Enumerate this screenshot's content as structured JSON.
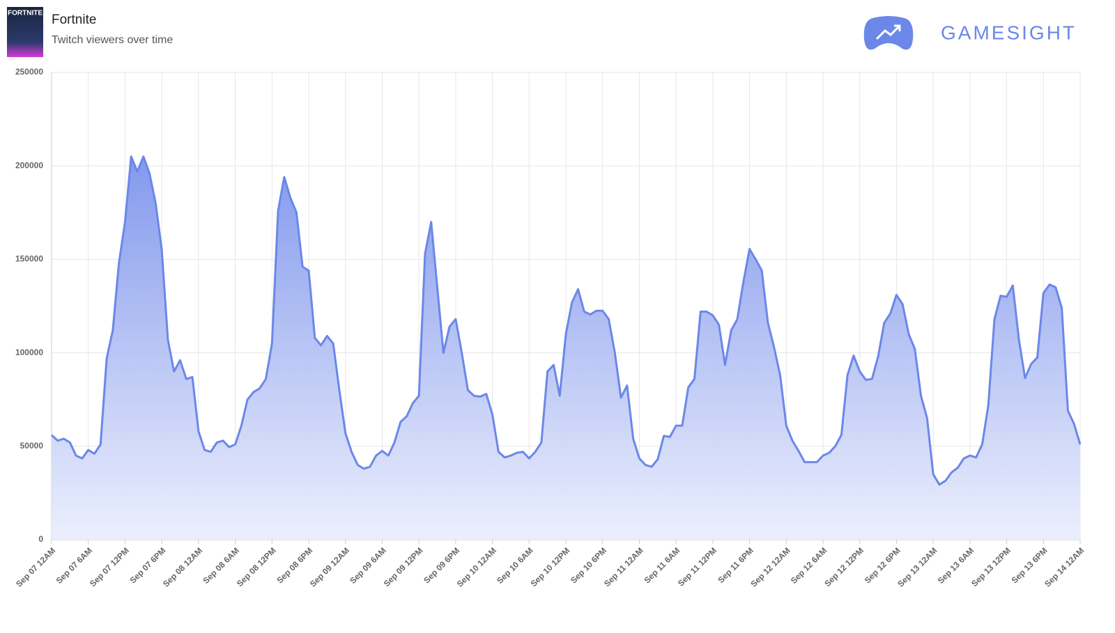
{
  "header": {
    "cover_label": "FORTNITE",
    "brand": "GAMESIGHT"
  },
  "chart_data": {
    "type": "area",
    "title": "Fortnite",
    "subtitle": "Twitch viewers over time",
    "color": "#6b87e8",
    "grid": true,
    "ylim": [
      0,
      250000
    ],
    "yticks": [
      0,
      50000,
      100000,
      150000,
      200000,
      250000
    ],
    "categories": [
      "Sep 07 12AM",
      null,
      null,
      null,
      null,
      null,
      "Sep 07 6AM",
      null,
      null,
      null,
      null,
      null,
      "Sep 07 12PM",
      null,
      null,
      null,
      null,
      null,
      "Sep 07 6PM",
      null,
      null,
      null,
      null,
      null,
      "Sep 08 12AM",
      null,
      null,
      null,
      null,
      null,
      "Sep 08 6AM",
      null,
      null,
      null,
      null,
      null,
      "Sep 08 12PM",
      null,
      null,
      null,
      null,
      null,
      "Sep 08 6PM",
      null,
      null,
      null,
      null,
      null,
      "Sep 09 12AM",
      null,
      null,
      null,
      null,
      null,
      "Sep 09 6AM",
      null,
      null,
      null,
      null,
      null,
      "Sep 09 12PM",
      null,
      null,
      null,
      null,
      null,
      "Sep 09 6PM",
      null,
      null,
      null,
      null,
      null,
      "Sep 10 12AM",
      null,
      null,
      null,
      null,
      null,
      "Sep 10 6AM",
      null,
      null,
      null,
      null,
      null,
      "Sep 10 12PM",
      null,
      null,
      null,
      null,
      null,
      "Sep 10 6PM",
      null,
      null,
      null,
      null,
      null,
      "Sep 11 12AM",
      null,
      null,
      null,
      null,
      null,
      "Sep 11 6AM",
      null,
      null,
      null,
      null,
      null,
      "Sep 11 12PM",
      null,
      null,
      null,
      null,
      null,
      "Sep 11 6PM",
      null,
      null,
      null,
      null,
      null,
      "Sep 12 12AM",
      null,
      null,
      null,
      null,
      null,
      "Sep 12 6AM",
      null,
      null,
      null,
      null,
      null,
      "Sep 12 12PM",
      null,
      null,
      null,
      null,
      null,
      "Sep 12 6PM",
      null,
      null,
      null,
      null,
      null,
      "Sep 13 12AM",
      null,
      null,
      null,
      null,
      null,
      "Sep 13 6AM",
      null,
      null,
      null,
      null,
      null,
      "Sep 13 12PM",
      null,
      null,
      null,
      null,
      null,
      "Sep 13 6PM",
      null,
      null,
      null,
      null,
      null,
      "Sep 14 12AM"
    ],
    "values": [
      56000,
      53000,
      54000,
      52000,
      45000,
      43500,
      48000,
      46000,
      51000,
      97000,
      112000,
      148000,
      170000,
      205000,
      197000,
      205000,
      196000,
      180000,
      155000,
      107000,
      90000,
      96000,
      86000,
      87000,
      58000,
      48000,
      47000,
      52000,
      53000,
      49500,
      51000,
      61000,
      75000,
      79000,
      81000,
      86000,
      105000,
      176000,
      194000,
      183000,
      175000,
      146000,
      144000,
      108000,
      104000,
      109000,
      105000,
      80000,
      57000,
      47000,
      40000,
      38000,
      39000,
      45000,
      47500,
      45000,
      52000,
      63000,
      66000,
      73000,
      77000,
      153000,
      170000,
      135000,
      100000,
      114000,
      118000,
      100000,
      80000,
      77000,
      76500,
      78000,
      67000,
      47000,
      44000,
      45000,
      46500,
      47000,
      43500,
      47000,
      52000,
      90000,
      93500,
      77000,
      110000,
      127000,
      134000,
      122000,
      120500,
      122500,
      122500,
      118000,
      100000,
      76000,
      82500,
      54000,
      43500,
      40000,
      39000,
      43000,
      55500,
      55000,
      61000,
      61000,
      81500,
      86000,
      122000,
      122000,
      120000,
      115000,
      93500,
      112000,
      118000,
      138000,
      155500,
      150000,
      144000,
      116000,
      103000,
      88000,
      61000,
      53000,
      47500,
      41500,
      41500,
      41500,
      45000,
      46500,
      50000,
      56000,
      88000,
      98500,
      90000,
      85500,
      86000,
      98000,
      116000,
      121000,
      131000,
      126000,
      110000,
      102000,
      77000,
      65000,
      35000,
      29500,
      31500,
      36000,
      38500,
      43500,
      45000,
      44000,
      51000,
      72000,
      118000,
      130500,
      130000,
      136000,
      107000,
      86500,
      94000,
      97500,
      132000,
      136500,
      135000,
      124000,
      69000,
      62000,
      51000
    ]
  }
}
